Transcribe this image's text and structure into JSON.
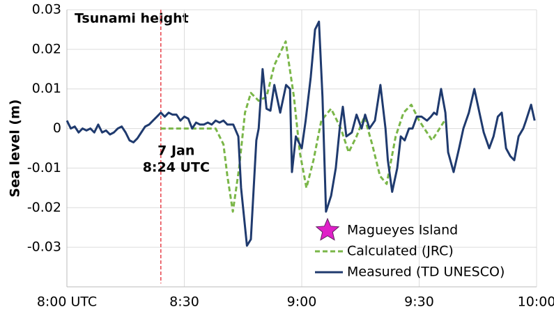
{
  "chart_data": {
    "type": "line",
    "title": "Tsunami height",
    "y_label": "Sea level (m)",
    "xlim": [
      0,
      120
    ],
    "xticks": [
      {
        "value": 0,
        "label": "8:00 UTC"
      },
      {
        "value": 30,
        "label": "8:30"
      },
      {
        "value": 60,
        "label": "9:00"
      },
      {
        "value": 90,
        "label": "9:30"
      },
      {
        "value": 120,
        "label": "10:00"
      }
    ],
    "ylim": [
      -0.04,
      0.03
    ],
    "yticks": [
      0.03,
      0.02,
      0.01,
      0,
      -0.01,
      -0.02,
      -0.03
    ],
    "grid": true,
    "event": {
      "x": 24,
      "color": "#e8424a",
      "label_lines": [
        "7 Jan",
        "8:24 UTC"
      ]
    },
    "legend_marker": {
      "label": "Magueyes Island",
      "color": "#e020c8"
    },
    "series": [
      {
        "name": "Calculated (JRC)",
        "color": "#7ab648",
        "dashed": true,
        "x": [
          24,
          38,
          40,
          41,
          42.4,
          44,
          45.5,
          47,
          49,
          51,
          53,
          55.9,
          58,
          59.5,
          61.2,
          63,
          65,
          67.5,
          70,
          72,
          74,
          76,
          78,
          80,
          81.7,
          84,
          86,
          88,
          90,
          93.3,
          96.5
        ],
        "values": [
          0,
          0,
          -0.004,
          -0.012,
          -0.021,
          -0.01,
          0.004,
          0.009,
          0.007,
          0.008,
          0.016,
          0.022,
          0.008,
          -0.006,
          -0.015,
          -0.008,
          0.002,
          0.005,
          0,
          -0.006,
          -0.002,
          0.003,
          -0.004,
          -0.012,
          -0.014,
          -0.002,
          0.004,
          0.006,
          0.002,
          -0.003,
          0.002
        ]
      },
      {
        "name": "Measured (TD UNESCO)",
        "color": "#1f3a6e",
        "dashed": false,
        "x": [
          0,
          1,
          2,
          3,
          4,
          5,
          6,
          7,
          8,
          9,
          10,
          11,
          12,
          13,
          14,
          15,
          16,
          17,
          18,
          19,
          20,
          21,
          22,
          23,
          24,
          25,
          26,
          27,
          28,
          29,
          30,
          31,
          32,
          33,
          34,
          35,
          36,
          37,
          38,
          39,
          40,
          41,
          42.5,
          43.8,
          44.5,
          46,
          47,
          48.4,
          49,
          50,
          51,
          52,
          53,
          54.5,
          56,
          57,
          57.5,
          58.5,
          60,
          61,
          62.3,
          63.4,
          64.4,
          65.3,
          66.2,
          67.5,
          68.7,
          69.7,
          70.5,
          71.4,
          72.8,
          74,
          75.3,
          76.2,
          77.3,
          78.7,
          80.1,
          81.4,
          82,
          83.1,
          84.4,
          85.3,
          86.3,
          87.4,
          88.3,
          89.4,
          90.6,
          92,
          93,
          93.8,
          94.5,
          95.6,
          96.7,
          97.4,
          98.8,
          100.2,
          101.3,
          102.7,
          104.1,
          105.4,
          106.5,
          107.9,
          109,
          110.1,
          111.1,
          112.2,
          113.3,
          114.3,
          115.4,
          116.6,
          117.3,
          118.6,
          119.5
        ],
        "values": [
          0.002,
          0,
          0.0005,
          -0.001,
          0,
          -0.0005,
          0,
          -0.001,
          0.001,
          -0.001,
          -0.0005,
          -0.0015,
          -0.001,
          0,
          0.0005,
          -0.001,
          -0.003,
          -0.0035,
          -0.0025,
          -0.001,
          0.0005,
          0.001,
          0.002,
          0.003,
          0.004,
          0.003,
          0.004,
          0.0035,
          0.0035,
          0.002,
          0.003,
          0.0025,
          0,
          0.0015,
          0.001,
          0.001,
          0.0015,
          0.001,
          0.002,
          0.0015,
          0.002,
          0.001,
          0.001,
          -0.002,
          -0.015,
          -0.0296,
          -0.028,
          -0.003,
          0,
          0.015,
          0.005,
          0.0045,
          0.011,
          0.004,
          0.011,
          0.01,
          -0.011,
          -0.002,
          -0.005,
          0.002,
          0.013,
          0.025,
          0.027,
          0.008,
          -0.021,
          -0.017,
          -0.01,
          0,
          0.0055,
          -0.002,
          -0.001,
          0.0035,
          0,
          0.0035,
          0,
          0.002,
          0.011,
          0,
          -0.008,
          -0.016,
          -0.01,
          -0.002,
          -0.003,
          0,
          0,
          0.003,
          0.003,
          0.002,
          0.003,
          0.004,
          0.0035,
          0.01,
          0.004,
          -0.006,
          -0.011,
          -0.005,
          0,
          0.004,
          0.01,
          0.004,
          -0.001,
          -0.005,
          -0.002,
          0.003,
          0.004,
          -0.005,
          -0.007,
          -0.008,
          -0.002,
          0,
          0.002,
          0.006,
          0.002
        ]
      }
    ]
  }
}
